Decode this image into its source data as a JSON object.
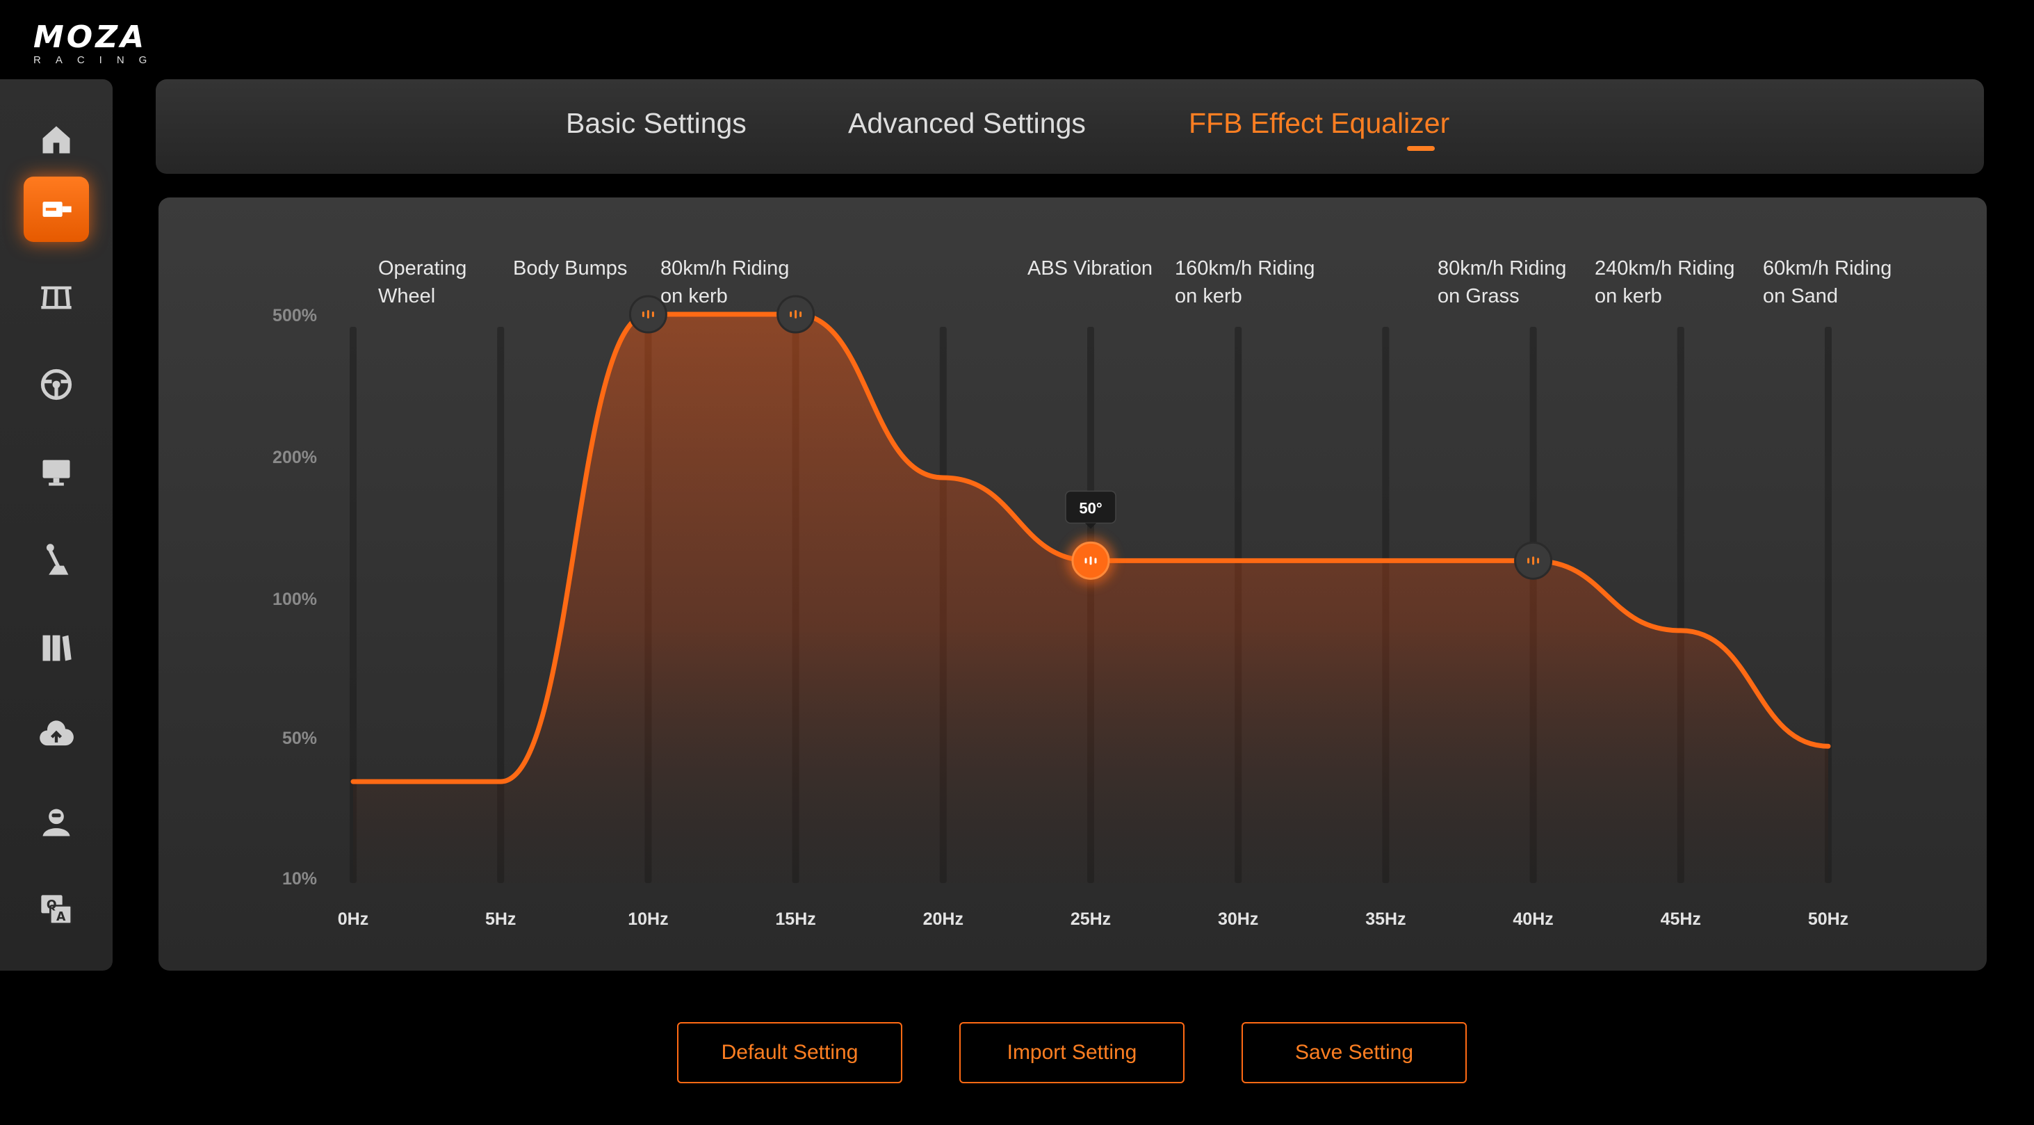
{
  "app": {
    "brand": "MOZA",
    "brand_sub": "RACING"
  },
  "sidebar": {
    "items": [
      {
        "name": "home-icon",
        "active": false
      },
      {
        "name": "wheelbase-icon",
        "active": true
      },
      {
        "name": "pedals-icon",
        "active": false
      },
      {
        "name": "steering-wheel-icon",
        "active": false
      },
      {
        "name": "dashboard-icon",
        "active": false
      },
      {
        "name": "shifter-icon",
        "active": false
      },
      {
        "name": "library-icon",
        "active": false
      },
      {
        "name": "cloud-upload-icon",
        "active": false
      },
      {
        "name": "user-icon",
        "active": false
      },
      {
        "name": "qa-help-icon",
        "active": false
      }
    ]
  },
  "tabs": [
    {
      "label": "Basic Settings",
      "active": false
    },
    {
      "label": "Advanced Settings",
      "active": false
    },
    {
      "label": "FFB Effect Equalizer",
      "active": true
    }
  ],
  "colors": {
    "accent": "#ff6a14",
    "accent_text": "#ff7f22"
  },
  "chart_data": {
    "type": "area",
    "x": [
      "0Hz",
      "5Hz",
      "10Hz",
      "15Hz",
      "20Hz",
      "25Hz",
      "30Hz",
      "35Hz",
      "40Hz",
      "45Hz",
      "50Hz"
    ],
    "y_ticks": [
      "500%",
      "200%",
      "100%",
      "50%",
      "10%"
    ],
    "series": [
      {
        "values": [
          30,
          30,
          500,
          500,
          180,
          120,
          120,
          120,
          120,
          85,
          45
        ]
      }
    ],
    "handles_at": [
      "10Hz",
      "15Hz",
      "25Hz",
      "40Hz"
    ],
    "tooltip": {
      "at": "25Hz",
      "label": "50°"
    },
    "effect_labels": [
      {
        "line1": "Operating",
        "line2": "Wheel"
      },
      {
        "line1": "Body Bumps",
        "line2": ""
      },
      {
        "line1": "80km/h Riding",
        "line2": "on kerb"
      },
      {
        "line1": "ABS Vibration",
        "line2": ""
      },
      {
        "line1": "160km/h Riding",
        "line2": "on kerb"
      },
      {
        "line1": "80km/h Riding",
        "line2": "on Grass"
      },
      {
        "line1": "240km/h Riding",
        "line2": "on kerb"
      },
      {
        "line1": "60km/h Riding",
        "line2": "on Sand"
      }
    ]
  },
  "actions": {
    "default_label": "Default Setting",
    "import_label": "Import Setting",
    "save_label": "Save Setting"
  }
}
